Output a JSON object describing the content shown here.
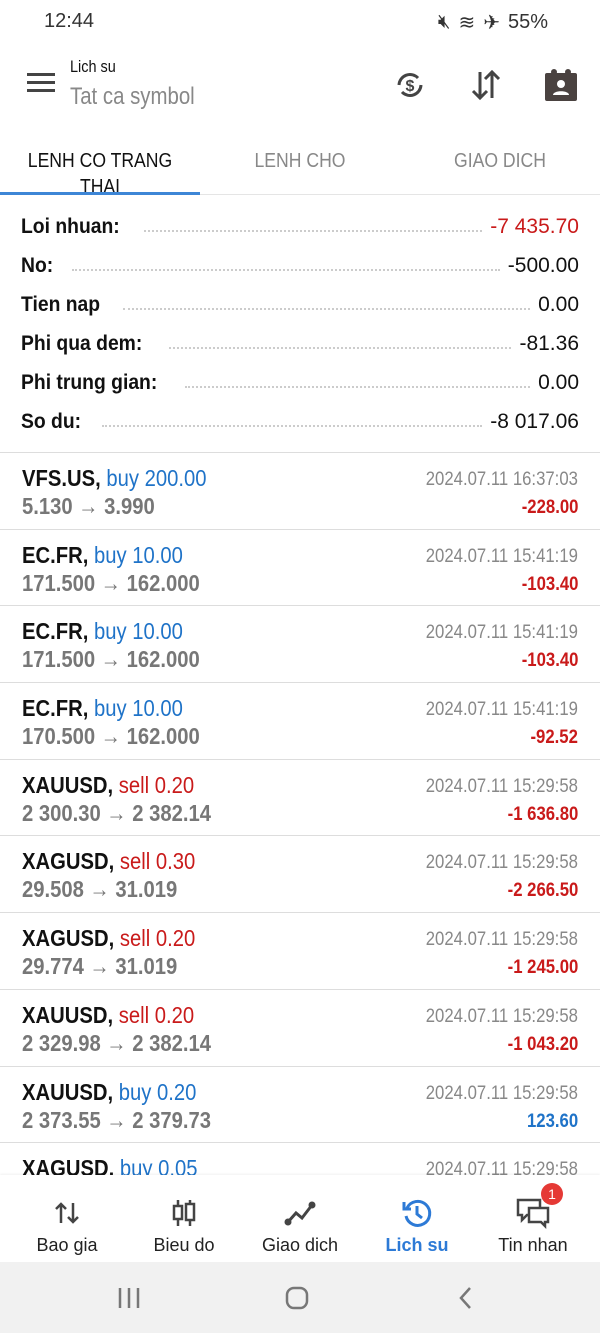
{
  "status": {
    "time": "12:44",
    "battery": "55%"
  },
  "header": {
    "title": "Lich su",
    "subtitle": "Tat ca symbol",
    "icons": [
      "currency-sync-icon",
      "sort-icon",
      "calendar-contact-icon"
    ]
  },
  "tabs": [
    {
      "label": "LENH CO TRANG THAI",
      "active": true
    },
    {
      "label": "LENH CHO"
    },
    {
      "label": "GIAO DICH"
    }
  ],
  "summary": [
    {
      "label": "Loi nhuan:",
      "value": "-7 435.70",
      "color": "red"
    },
    {
      "label": "No:",
      "value": "-500.00"
    },
    {
      "label": "Tien nap",
      "value": "0.00"
    },
    {
      "label": "Phi qua dem:",
      "value": "-81.36"
    },
    {
      "label": "Phi trung gian:",
      "value": "0.00"
    },
    {
      "label": "So du:",
      "value": "-8 017.06"
    }
  ],
  "deals": [
    {
      "symbol": "VFS.US,",
      "side": "buy 200.00",
      "prices": "5.130 → 3.990",
      "time": "2024.07.11 16:37:03",
      "profit": "-228.00"
    },
    {
      "symbol": "EC.FR,",
      "side": "buy 10.00",
      "prices": "171.500 → 162.000",
      "time": "2024.07.11 15:41:19",
      "profit": "-103.40"
    },
    {
      "symbol": "EC.FR,",
      "side": "buy 10.00",
      "prices": "171.500 → 162.000",
      "time": "2024.07.11 15:41:19",
      "profit": "-103.40"
    },
    {
      "symbol": "EC.FR,",
      "side": "buy 10.00",
      "prices": "170.500 → 162.000",
      "time": "2024.07.11 15:41:19",
      "profit": "-92.52"
    },
    {
      "symbol": "XAUUSD,",
      "side": "sell 0.20",
      "prices": "2 300.30 → 2 382.14",
      "time": "2024.07.11 15:29:58",
      "profit": "-1 636.80"
    },
    {
      "symbol": "XAGUSD,",
      "side": "sell 0.30",
      "prices": "29.508 → 31.019",
      "time": "2024.07.11 15:29:58",
      "profit": "-2 266.50"
    },
    {
      "symbol": "XAGUSD,",
      "side": "sell 0.20",
      "prices": "29.774 → 31.019",
      "time": "2024.07.11 15:29:58",
      "profit": "-1 245.00"
    },
    {
      "symbol": "XAUUSD,",
      "side": "sell 0.20",
      "prices": "2 329.98 → 2 382.14",
      "time": "2024.07.11 15:29:58",
      "profit": "-1 043.20"
    },
    {
      "symbol": "XAUUSD,",
      "side": "buy 0.20",
      "prices": "2 373.55 → 2 379.73",
      "time": "2024.07.11 15:29:58",
      "profit": "123.60"
    },
    {
      "symbol": "XAGUSD,",
      "side": "buy 0.05",
      "prices": "",
      "time": "2024.07.11 15:29:58",
      "profit": ""
    }
  ],
  "nav": [
    {
      "label": "Bao gia",
      "icon": "quotes-icon"
    },
    {
      "label": "Bieu do",
      "icon": "chart-icon"
    },
    {
      "label": "Giao dich",
      "icon": "trade-icon"
    },
    {
      "label": "Lich su",
      "icon": "history-icon",
      "active": true
    },
    {
      "label": "Tin nhan",
      "icon": "messages-icon",
      "badge": "1"
    }
  ],
  "colors": {
    "accent": "#2d7ad6",
    "loss": "#c91a1a",
    "buy": "#1f73c8"
  }
}
